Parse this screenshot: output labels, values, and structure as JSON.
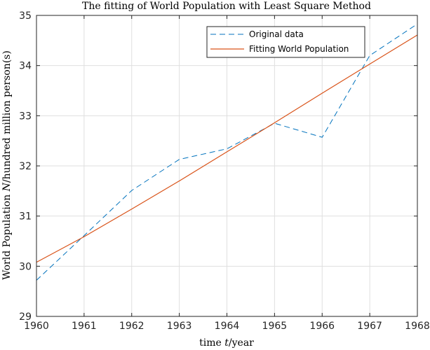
{
  "chart_data": {
    "type": "line",
    "title": "The fitting of World Population with Least Square Method",
    "xlabel_prefix": "time ",
    "xlabel_var": "t",
    "xlabel_suffix": "/year",
    "ylabel_prefix": "World Population ",
    "ylabel_var": "N",
    "ylabel_suffix": "/hundred million person(s)",
    "xlim": [
      1960,
      1968
    ],
    "ylim": [
      29,
      35
    ],
    "xticks": [
      "1960",
      "1961",
      "1962",
      "1963",
      "1964",
      "1965",
      "1966",
      "1967",
      "1968"
    ],
    "yticks": [
      "29",
      "30",
      "31",
      "32",
      "33",
      "34",
      "35"
    ],
    "grid": true,
    "legend_position": "top-right",
    "series": [
      {
        "name": "Original data",
        "style": "dashed",
        "color": "#0072BD",
        "x": [
          1960,
          1961,
          1962,
          1963,
          1964,
          1965,
          1966,
          1967,
          1968
        ],
        "y": [
          29.72,
          30.61,
          31.51,
          32.13,
          32.34,
          32.85,
          32.57,
          34.2,
          34.83
        ]
      },
      {
        "name": "Fitting World Population",
        "style": "solid",
        "color": "#D95319",
        "x": [
          1960,
          1961,
          1962,
          1963,
          1964,
          1965,
          1966,
          1967,
          1968
        ],
        "y": [
          30.08,
          30.59,
          31.14,
          31.7,
          32.28,
          32.86,
          33.45,
          34.03,
          34.61
        ]
      }
    ]
  }
}
